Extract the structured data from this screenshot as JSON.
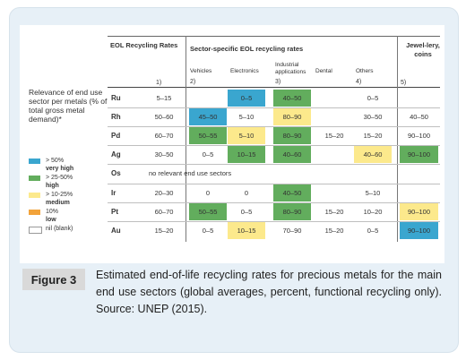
{
  "colors": {
    "very_high": "#3aa6cf",
    "high": "#62ad5d",
    "medium": "#fce98c",
    "low": "#f2a33a",
    "nil": "#ffffff"
  },
  "legend": {
    "title": "Relevance of end use sector per metals (% of total gross metal demand)*",
    "items": [
      {
        "key": "very_high",
        "range": "> 50%",
        "label": "very high"
      },
      {
        "key": "high",
        "range": "> 25-50%",
        "label": "high"
      },
      {
        "key": "medium",
        "range": "> 10-25%",
        "label": "medium"
      },
      {
        "key": "low",
        "range": "10%",
        "label": "low"
      },
      {
        "key": "nil",
        "range": "",
        "label": "nil (blank)"
      }
    ]
  },
  "table": {
    "eol_header": "EOL Recycling Rates",
    "eol_note": "1)",
    "sector_header": "Sector-specific EOL recycling rates",
    "jewellery_header": "Jewel-lery, coins",
    "jewellery_note": "5)",
    "sectors": [
      {
        "name": "Vehicles",
        "note": "2)"
      },
      {
        "name": "Electronics",
        "note": ""
      },
      {
        "name": "Industrial applications",
        "note": "3)"
      },
      {
        "name": "Dental",
        "note": ""
      },
      {
        "name": "Others",
        "note": "4)"
      }
    ],
    "span_text": "no relevant end use sectors",
    "rows": [
      {
        "metal": "Ru",
        "cells": [
          {
            "v": "5–15",
            "c": "nil"
          },
          {
            "v": "",
            "c": "nil"
          },
          {
            "v": "0–5",
            "c": "very_high"
          },
          {
            "v": "40–50",
            "c": "high"
          },
          {
            "v": "",
            "c": "nil"
          },
          {
            "v": "0–5",
            "c": "nil"
          },
          {
            "v": "",
            "c": "nil"
          }
        ]
      },
      {
        "metal": "Rh",
        "cells": [
          {
            "v": "50–60",
            "c": "nil"
          },
          {
            "v": "45–50",
            "c": "very_high"
          },
          {
            "v": "5–10",
            "c": "nil"
          },
          {
            "v": "80–90",
            "c": "medium"
          },
          {
            "v": "",
            "c": "nil"
          },
          {
            "v": "30–50",
            "c": "nil"
          },
          {
            "v": "40–50",
            "c": "nil"
          }
        ]
      },
      {
        "metal": "Pd",
        "cells": [
          {
            "v": "60–70",
            "c": "nil"
          },
          {
            "v": "50–55",
            "c": "high"
          },
          {
            "v": "5–10",
            "c": "medium"
          },
          {
            "v": "80–90",
            "c": "high"
          },
          {
            "v": "15–20",
            "c": "nil"
          },
          {
            "v": "15–20",
            "c": "nil"
          },
          {
            "v": "90–100",
            "c": "nil"
          }
        ]
      },
      {
        "metal": "Ag",
        "cells": [
          {
            "v": "30–50",
            "c": "nil"
          },
          {
            "v": "0–5",
            "c": "nil"
          },
          {
            "v": "10–15",
            "c": "high"
          },
          {
            "v": "40–60",
            "c": "high"
          },
          {
            "v": "",
            "c": "nil"
          },
          {
            "v": "40–60",
            "c": "medium"
          },
          {
            "v": "90–100",
            "c": "high"
          }
        ]
      },
      {
        "metal": "Os",
        "span": true,
        "cells": []
      },
      {
        "metal": "Ir",
        "cells": [
          {
            "v": "20–30",
            "c": "nil"
          },
          {
            "v": "0",
            "c": "nil"
          },
          {
            "v": "0",
            "c": "nil"
          },
          {
            "v": "40–50",
            "c": "high"
          },
          {
            "v": "",
            "c": "nil"
          },
          {
            "v": "5–10",
            "c": "nil"
          },
          {
            "v": "",
            "c": "nil"
          }
        ]
      },
      {
        "metal": "Pt",
        "cells": [
          {
            "v": "60–70",
            "c": "nil"
          },
          {
            "v": "50–55",
            "c": "high"
          },
          {
            "v": "0–5",
            "c": "nil"
          },
          {
            "v": "80–90",
            "c": "high"
          },
          {
            "v": "15–20",
            "c": "nil"
          },
          {
            "v": "10–20",
            "c": "nil"
          },
          {
            "v": "90–100",
            "c": "medium"
          }
        ]
      },
      {
        "metal": "Au",
        "cells": [
          {
            "v": "15–20",
            "c": "nil"
          },
          {
            "v": "0–5",
            "c": "nil"
          },
          {
            "v": "10–15",
            "c": "medium"
          },
          {
            "v": "70–90",
            "c": "nil"
          },
          {
            "v": "15–20",
            "c": "nil"
          },
          {
            "v": "0–5",
            "c": "nil"
          },
          {
            "v": "90–100",
            "c": "very_high"
          }
        ]
      }
    ]
  },
  "caption": {
    "label": "Figure 3",
    "text": "Estimated end-of-life recycling rates for precious metals for the main end use sectors (global averages, percent, functional recycling only). Source: UNEP (2015)."
  }
}
